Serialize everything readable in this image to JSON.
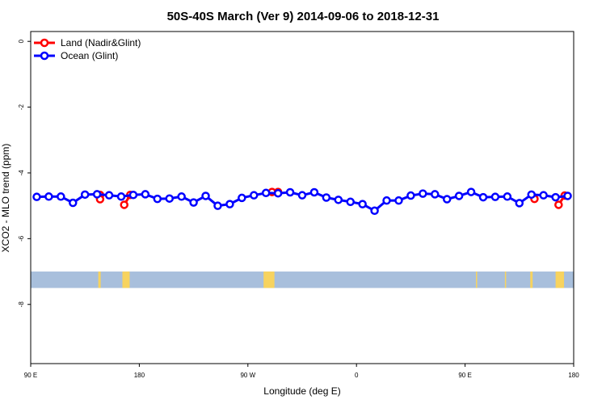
{
  "chart_data": {
    "type": "line",
    "title": "50S-40S March (Ver 9)   2014-09-06 to 2018-12-31",
    "xlabel": "Longitude (deg E)",
    "ylabel": "XCO2 - MLO trend (ppm)",
    "xlim": [
      90,
      540
    ],
    "ylim": [
      0.3,
      -9.8
    ],
    "y_axis_inverted": true,
    "x_ticks": [
      {
        "value": 90,
        "label": "90 E"
      },
      {
        "value": 180,
        "label": "180"
      },
      {
        "value": 270,
        "label": "90 W"
      },
      {
        "value": 360,
        "label": "0"
      },
      {
        "value": 450,
        "label": "90 E"
      },
      {
        "value": 540,
        "label": "180"
      }
    ],
    "y_ticks": [
      {
        "value": 0,
        "label": "0"
      },
      {
        "value": -2,
        "label": "-2"
      },
      {
        "value": -4,
        "label": "-4"
      },
      {
        "value": -6,
        "label": "-6"
      },
      {
        "value": -8,
        "label": "-8"
      }
    ],
    "legend_position": "top-left",
    "grid": false,
    "series": [
      {
        "name": "Land (Nadir&Glint)",
        "color": "#ff0000",
        "points": [
          {
            "x": 147.5,
            "y": -4.67
          },
          {
            "x": 147.5,
            "y": -4.8
          },
          {
            "x": 167.5,
            "y": -4.97
          },
          {
            "x": 172.5,
            "y": -4.67
          },
          {
            "x": 290,
            "y": -4.58
          },
          {
            "x": 295,
            "y": -4.58
          },
          {
            "x": 507.5,
            "y": -4.79
          },
          {
            "x": 527.5,
            "y": -4.97
          },
          {
            "x": 532.5,
            "y": -4.69
          }
        ]
      },
      {
        "name": "Ocean (Glint)",
        "color": "#0000ff",
        "points": [
          {
            "x": 95,
            "y": -4.73
          },
          {
            "x": 105,
            "y": -4.72
          },
          {
            "x": 115,
            "y": -4.72
          },
          {
            "x": 125,
            "y": -4.91
          },
          {
            "x": 135,
            "y": -4.66
          },
          {
            "x": 145,
            "y": -4.65
          },
          {
            "x": 155,
            "y": -4.68
          },
          {
            "x": 165,
            "y": -4.72
          },
          {
            "x": 175,
            "y": -4.67
          },
          {
            "x": 185,
            "y": -4.65
          },
          {
            "x": 195,
            "y": -4.79
          },
          {
            "x": 205,
            "y": -4.78
          },
          {
            "x": 215,
            "y": -4.72
          },
          {
            "x": 225,
            "y": -4.9
          },
          {
            "x": 235,
            "y": -4.7
          },
          {
            "x": 245,
            "y": -5.0
          },
          {
            "x": 255,
            "y": -4.95
          },
          {
            "x": 265,
            "y": -4.76
          },
          {
            "x": 275,
            "y": -4.68
          },
          {
            "x": 285,
            "y": -4.61
          },
          {
            "x": 295,
            "y": -4.62
          },
          {
            "x": 305,
            "y": -4.59
          },
          {
            "x": 315,
            "y": -4.68
          },
          {
            "x": 325,
            "y": -4.59
          },
          {
            "x": 335,
            "y": -4.75
          },
          {
            "x": 345,
            "y": -4.82
          },
          {
            "x": 355,
            "y": -4.88
          },
          {
            "x": 365,
            "y": -4.95
          },
          {
            "x": 375,
            "y": -5.15
          },
          {
            "x": 385,
            "y": -4.84
          },
          {
            "x": 395,
            "y": -4.84
          },
          {
            "x": 405,
            "y": -4.69
          },
          {
            "x": 415,
            "y": -4.63
          },
          {
            "x": 425,
            "y": -4.65
          },
          {
            "x": 435,
            "y": -4.8
          },
          {
            "x": 445,
            "y": -4.7
          },
          {
            "x": 455,
            "y": -4.58
          },
          {
            "x": 465,
            "y": -4.74
          },
          {
            "x": 475,
            "y": -4.73
          },
          {
            "x": 485,
            "y": -4.72
          },
          {
            "x": 495,
            "y": -4.92
          },
          {
            "x": 505,
            "y": -4.66
          },
          {
            "x": 515,
            "y": -4.68
          },
          {
            "x": 525,
            "y": -4.74
          },
          {
            "x": 535,
            "y": -4.7
          }
        ]
      }
    ],
    "land_mask_band": {
      "y_range": [
        -7.0,
        -7.5
      ],
      "ocean_color": "#a8bfdc",
      "land_color": "#f7d35f",
      "land_x_ranges": [
        [
          146,
          148
        ],
        [
          166,
          172
        ],
        [
          283,
          292
        ],
        [
          483,
          484
        ],
        [
          459,
          460
        ],
        [
          504,
          506
        ],
        [
          525,
          532
        ]
      ]
    }
  }
}
